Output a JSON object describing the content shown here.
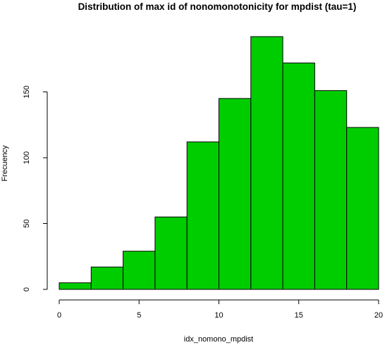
{
  "chart_data": {
    "type": "bar",
    "title": "Distribution of max id of nonomonotonicity for mpdist (tau=1)",
    "xlabel": "idx_nomono_mpdist",
    "ylabel": "Frecuency",
    "bins": [
      {
        "x0": 0,
        "x1": 2,
        "value": 5
      },
      {
        "x0": 2,
        "x1": 4,
        "value": 17
      },
      {
        "x0": 4,
        "x1": 6,
        "value": 29
      },
      {
        "x0": 6,
        "x1": 8,
        "value": 55
      },
      {
        "x0": 8,
        "x1": 10,
        "value": 112
      },
      {
        "x0": 10,
        "x1": 12,
        "value": 145
      },
      {
        "x0": 12,
        "x1": 14,
        "value": 192
      },
      {
        "x0": 14,
        "x1": 16,
        "value": 172
      },
      {
        "x0": 16,
        "x1": 18,
        "value": 151
      },
      {
        "x0": 18,
        "x1": 20,
        "value": 123
      }
    ],
    "xlim": [
      0,
      20
    ],
    "ylim": [
      0,
      192
    ],
    "xticks": [
      0,
      5,
      10,
      15,
      20
    ],
    "xtick_labels": [
      "0",
      "5",
      "10",
      "15",
      "20"
    ],
    "yticks": [
      0,
      50,
      100,
      150
    ],
    "ytick_labels": [
      "0",
      "50",
      "100",
      "150"
    ],
    "bar_color": "#00cd00",
    "grid": false,
    "legend": "none"
  }
}
